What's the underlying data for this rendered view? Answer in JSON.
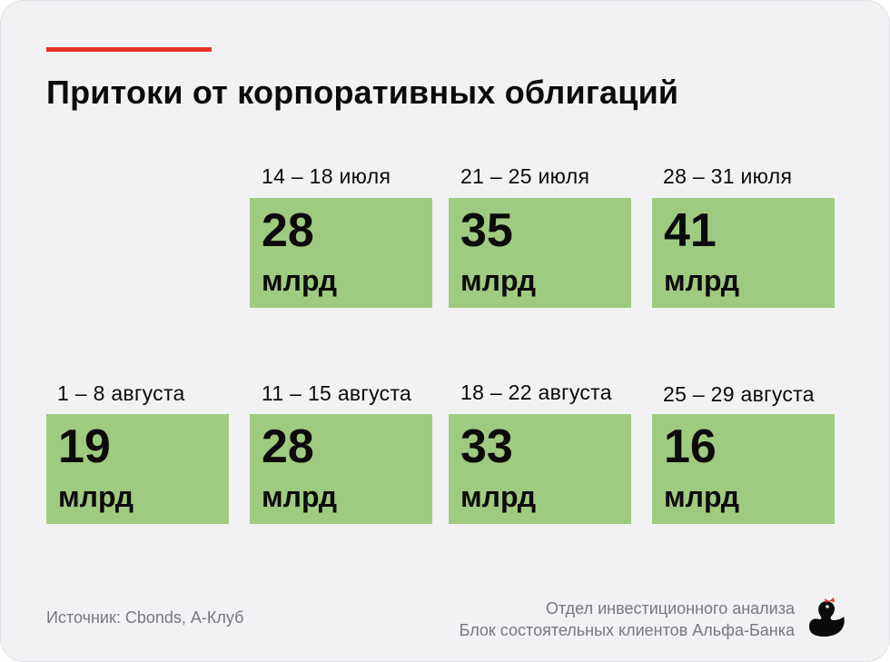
{
  "title": "Притоки от корпоративных облигаций",
  "colors": {
    "accent": "#e8322a",
    "tile": "#9fcb81",
    "text": "#0b0b0b",
    "muted": "#77777d"
  },
  "chart_data": {
    "type": "table",
    "title": "Притоки от корпоративных облигаций",
    "unit": "млрд",
    "items": [
      {
        "period": "14 – 18 июля",
        "value": "28",
        "unit": "млрд"
      },
      {
        "period": "21 – 25 июля",
        "value": "35",
        "unit": "млрд"
      },
      {
        "period": "28 – 31 июля",
        "value": "41",
        "unit": "млрд"
      },
      {
        "period": "1 – 8 августа",
        "value": "19",
        "unit": "млрд"
      },
      {
        "period": "11 – 15 августа",
        "value": "28",
        "unit": "млрд"
      },
      {
        "period": "18 – 22 августа",
        "value": "33",
        "unit": "млрд"
      },
      {
        "period": "25 – 29 августа",
        "value": "16",
        "unit": "млрд"
      }
    ]
  },
  "footer": {
    "source": "Источник: Cbonds, А-Клуб",
    "credit_line1": "Отдел инвестиционного анализа",
    "credit_line2": "Блок состоятельных клиентов Альфа-Банка",
    "logo_icon": "duck-logo-icon"
  }
}
